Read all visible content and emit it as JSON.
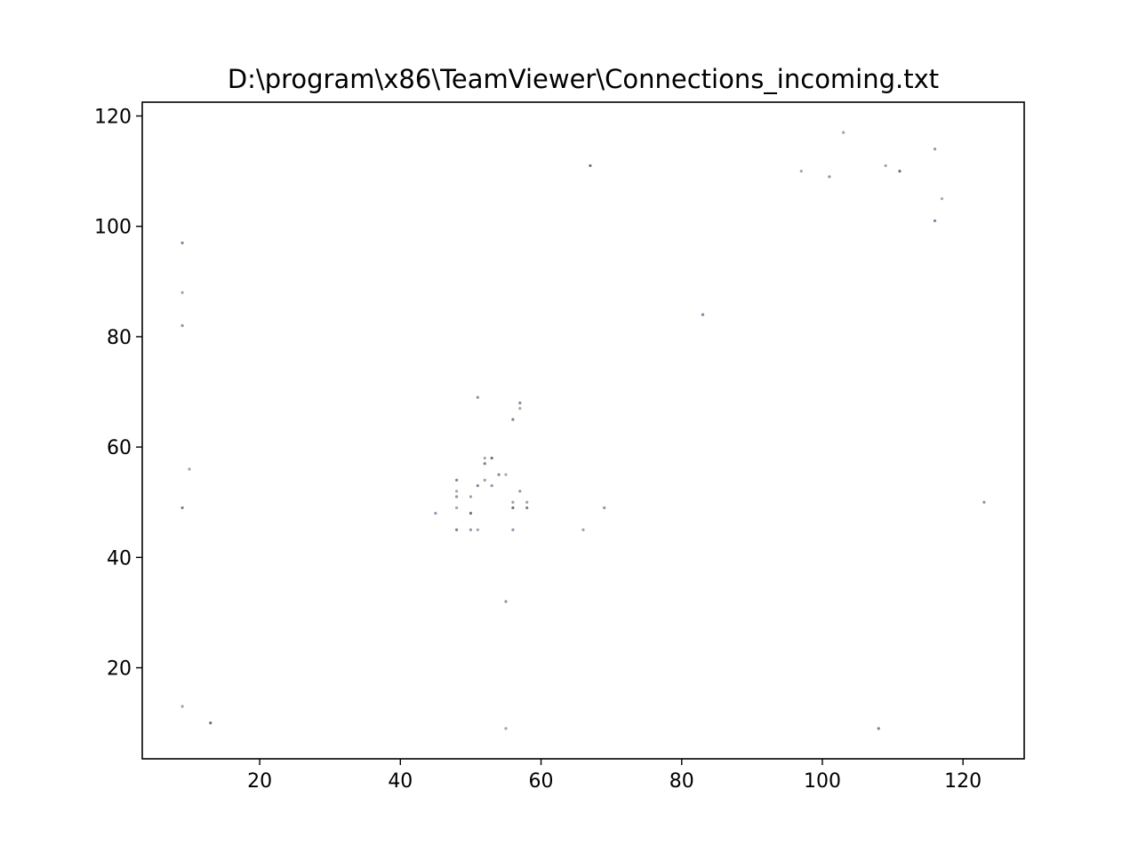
{
  "chart_data": {
    "type": "scatter",
    "title": "D:\\program\\x86\\TeamViewer\\Connections_incoming.txt",
    "xlabel": "",
    "ylabel": "",
    "xlim": [
      3.3,
      128.7
    ],
    "ylim": [
      3.5,
      122.5
    ],
    "xticks": [
      20,
      40,
      60,
      80,
      100,
      120
    ],
    "yticks": [
      20,
      40,
      60,
      80,
      100,
      120
    ],
    "xtick_labels": [
      "20",
      "40",
      "60",
      "80",
      "100",
      "120"
    ],
    "ytick_labels": [
      "20",
      "40",
      "60",
      "80",
      "100",
      "120"
    ],
    "grid": false,
    "legend": "none",
    "point_colors": [
      "#8c7fa6",
      "#a6a6a6",
      "#9a8caa",
      "#b59aa0",
      "#7f7f8c",
      "#a3a38a",
      "#6f6f78",
      "#9c8fb5"
    ],
    "points": [
      {
        "x": 9,
        "y": 97
      },
      {
        "x": 9,
        "y": 88
      },
      {
        "x": 9,
        "y": 82
      },
      {
        "x": 10,
        "y": 56
      },
      {
        "x": 9,
        "y": 49
      },
      {
        "x": 9,
        "y": 13
      },
      {
        "x": 13,
        "y": 10
      },
      {
        "x": 45,
        "y": 48
      },
      {
        "x": 48,
        "y": 54
      },
      {
        "x": 48,
        "y": 52
      },
      {
        "x": 48,
        "y": 51
      },
      {
        "x": 48,
        "y": 49
      },
      {
        "x": 48,
        "y": 45
      },
      {
        "x": 50,
        "y": 51
      },
      {
        "x": 50,
        "y": 48
      },
      {
        "x": 50,
        "y": 45
      },
      {
        "x": 51,
        "y": 53
      },
      {
        "x": 51,
        "y": 45
      },
      {
        "x": 51,
        "y": 69
      },
      {
        "x": 52,
        "y": 58
      },
      {
        "x": 52,
        "y": 57
      },
      {
        "x": 52,
        "y": 54
      },
      {
        "x": 53,
        "y": 58
      },
      {
        "x": 53,
        "y": 53
      },
      {
        "x": 54,
        "y": 55
      },
      {
        "x": 55,
        "y": 55
      },
      {
        "x": 55,
        "y": 32
      },
      {
        "x": 55,
        "y": 9
      },
      {
        "x": 56,
        "y": 65
      },
      {
        "x": 56,
        "y": 50
      },
      {
        "x": 56,
        "y": 49
      },
      {
        "x": 56,
        "y": 45
      },
      {
        "x": 57,
        "y": 68
      },
      {
        "x": 57,
        "y": 67
      },
      {
        "x": 57,
        "y": 52
      },
      {
        "x": 58,
        "y": 50
      },
      {
        "x": 58,
        "y": 49
      },
      {
        "x": 66,
        "y": 45
      },
      {
        "x": 67,
        "y": 111
      },
      {
        "x": 69,
        "y": 49
      },
      {
        "x": 83,
        "y": 84
      },
      {
        "x": 97,
        "y": 110
      },
      {
        "x": 101,
        "y": 109
      },
      {
        "x": 103,
        "y": 117
      },
      {
        "x": 108,
        "y": 9
      },
      {
        "x": 109,
        "y": 111
      },
      {
        "x": 111,
        "y": 110
      },
      {
        "x": 116,
        "y": 114
      },
      {
        "x": 116,
        "y": 101
      },
      {
        "x": 117,
        "y": 105
      },
      {
        "x": 123,
        "y": 50
      }
    ]
  }
}
